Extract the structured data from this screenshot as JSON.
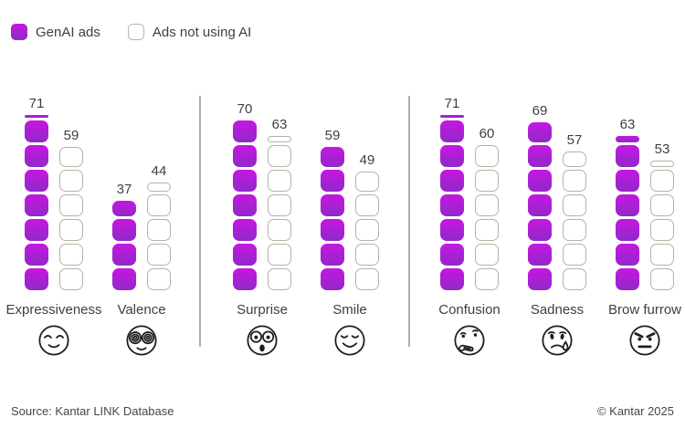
{
  "legend": {
    "genai_label": "GenAI ads",
    "noai_label": "Ads not using AI"
  },
  "colors": {
    "genai_top": "#c517e0",
    "genai_bottom": "#9029c9",
    "outline": "#b5b2a6",
    "divider": "#aeaeae",
    "text": "#3f3f3f"
  },
  "footer": {
    "source": "Source: Kantar LINK Database",
    "copyright": "© Kantar 2025"
  },
  "chart_data": {
    "type": "bar",
    "title": "",
    "unit_per_block": 10,
    "block_style": "stacked rounded squares, one block = 10 units, partial top block = remainder",
    "legend_position": "top-left",
    "series": [
      {
        "name": "GenAI ads",
        "style": "magenta-filled"
      },
      {
        "name": "Ads not using AI",
        "style": "white-outlined"
      }
    ],
    "groups": [
      {
        "metrics": [
          {
            "label": "Expressiveness",
            "emoji": "smiling-closed-eyes-face-icon",
            "genai": 71,
            "no_ai": 59
          },
          {
            "label": "Valence",
            "emoji": "spiral-eyes-glasses-face-icon",
            "genai": 37,
            "no_ai": 44
          }
        ]
      },
      {
        "metrics": [
          {
            "label": "Surprise",
            "emoji": "astonished-face-icon",
            "genai": 70,
            "no_ai": 63
          },
          {
            "label": "Smile",
            "emoji": "smiling-face-icon",
            "genai": 59,
            "no_ai": 49
          }
        ]
      },
      {
        "metrics": [
          {
            "label": "Confusion",
            "emoji": "thinking-face-icon",
            "genai": 71,
            "no_ai": 60
          },
          {
            "label": "Sadness",
            "emoji": "sad-face-with-tear-icon",
            "genai": 69,
            "no_ai": 57
          },
          {
            "label": "Brow furrow",
            "emoji": "angry-face-icon",
            "genai": 63,
            "no_ai": 53
          }
        ]
      }
    ]
  }
}
